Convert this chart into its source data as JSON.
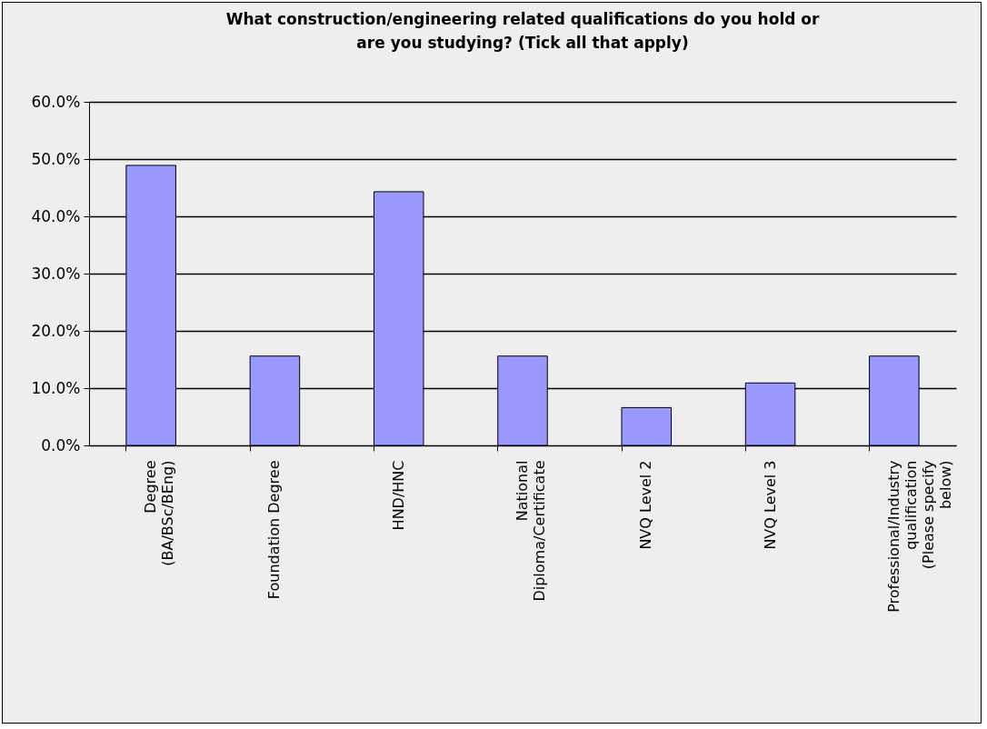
{
  "chart_data": {
    "type": "bar",
    "title": [
      "What construction/engineering related qualifications do you hold or",
      "are you studying? (Tick all that apply)"
    ],
    "categories": [
      "Degree (BA/BSc/BEng)",
      "Foundation Degree",
      "HND/HNC",
      "National Diploma/Certificate",
      "NVQ Level 2",
      "NVQ Level 3",
      "Professional/Industry qualification (Please specify below)"
    ],
    "values": [
      48.9,
      15.6,
      44.3,
      15.6,
      6.6,
      10.9,
      15.6
    ],
    "color": "#9999ff",
    "ylim": [
      0,
      60
    ],
    "yticks": [
      {
        "value": 0,
        "label": "0.0%"
      },
      {
        "value": 10,
        "label": "10.0%"
      },
      {
        "value": 20,
        "label": "20.0%"
      },
      {
        "value": 30,
        "label": "30.0%"
      },
      {
        "value": 40,
        "label": "40.0%"
      },
      {
        "value": 50,
        "label": "50.0%"
      },
      {
        "value": 60,
        "label": "60.0%"
      }
    ],
    "grid": "y"
  }
}
